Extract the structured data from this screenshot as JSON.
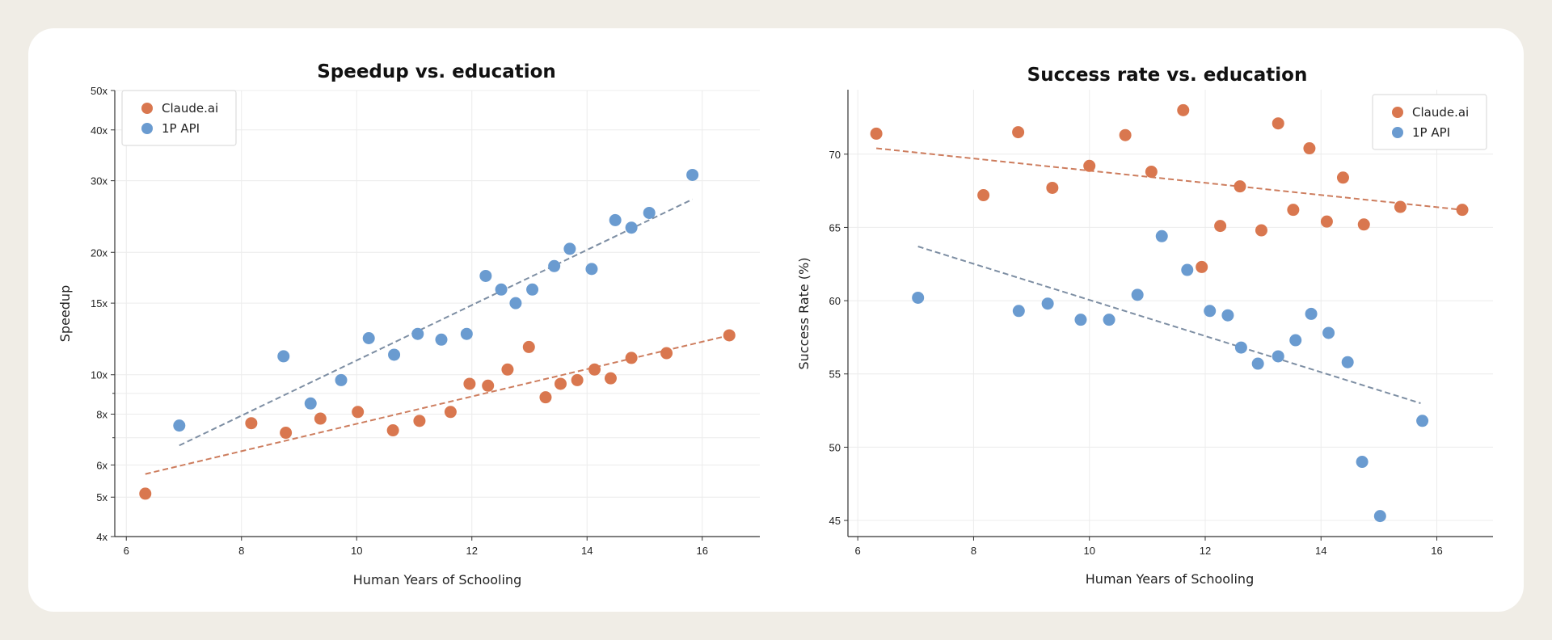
{
  "colors": {
    "background": "#f0ede6",
    "card": "#ffffff",
    "claude": "#d9774f",
    "api": "#6a9bd0",
    "claude_trend": "#cd7d5e",
    "api_trend": "#7d8ea3",
    "grid": "#ececec"
  },
  "chart_data": [
    {
      "type": "scatter",
      "title": "Speedup vs. education",
      "xlabel": "Human Years of Schooling",
      "ylabel": "Speedup",
      "xlim": [
        5.8,
        17
      ],
      "ylim": [
        4,
        50
      ],
      "yscale": "log",
      "xticks": [
        6,
        8,
        10,
        12,
        14,
        16
      ],
      "yticks": [
        4,
        5,
        6,
        8,
        10,
        15,
        20,
        30,
        40,
        50
      ],
      "ytick_labels": [
        "4x",
        "5x",
        "6x",
        "8x",
        "10x",
        "15x",
        "20x",
        "30x",
        "40x",
        "50x"
      ],
      "yminor": [
        7,
        9
      ],
      "grid": true,
      "legend": "top-left",
      "series": [
        {
          "name": "Claude.ai",
          "color": "#d9774f",
          "x": [
            6.33,
            8.17,
            8.77,
            9.37,
            10.02,
            10.63,
            11.09,
            11.63,
            11.96,
            12.28,
            12.62,
            12.99,
            13.28,
            13.54,
            13.83,
            14.13,
            14.41,
            14.77,
            15.38,
            16.47
          ],
          "y": [
            5.1,
            7.6,
            7.2,
            7.8,
            8.1,
            7.3,
            7.7,
            8.1,
            9.5,
            9.4,
            10.3,
            11.7,
            8.8,
            9.5,
            9.7,
            10.3,
            9.8,
            11.0,
            11.3,
            12.5
          ],
          "trend": {
            "x": [
              6.33,
              16.47
            ],
            "y": [
              5.7,
              12.5
            ]
          }
        },
        {
          "name": "1P API",
          "color": "#6a9bd0",
          "x": [
            6.92,
            8.73,
            9.2,
            9.73,
            10.21,
            10.65,
            11.06,
            11.47,
            11.91,
            12.24,
            12.51,
            12.76,
            13.05,
            13.43,
            13.7,
            14.08,
            14.49,
            14.77,
            15.08,
            15.83
          ],
          "y": [
            7.5,
            11.1,
            8.5,
            9.7,
            12.3,
            11.2,
            12.6,
            12.2,
            12.6,
            17.5,
            16.2,
            15.0,
            16.2,
            18.5,
            20.4,
            18.2,
            24.0,
            23.0,
            25.0,
            31.0
          ],
          "trend": {
            "x": [
              6.92,
              15.83
            ],
            "y": [
              6.7,
              27.0
            ]
          }
        }
      ]
    },
    {
      "type": "scatter",
      "title": "Success rate vs. education",
      "xlabel": "Human Years of Schooling",
      "ylabel": "Success Rate (%)",
      "xlim": [
        5.83,
        16.97
      ],
      "ylim": [
        43.9,
        74.4
      ],
      "yscale": "linear",
      "xticks": [
        6,
        8,
        10,
        12,
        14,
        16
      ],
      "yticks": [
        45,
        50,
        55,
        60,
        65,
        70
      ],
      "ytick_labels": [
        "45",
        "50",
        "55",
        "60",
        "65",
        "70"
      ],
      "yminor": [],
      "grid": true,
      "legend": "top-right",
      "series": [
        {
          "name": "Claude.ai",
          "color": "#d9774f",
          "x": [
            6.32,
            8.17,
            8.77,
            9.36,
            10.0,
            10.62,
            11.07,
            11.62,
            11.94,
            12.26,
            12.6,
            12.97,
            13.26,
            13.52,
            13.8,
            14.1,
            14.38,
            14.74,
            15.37,
            16.44
          ],
          "y": [
            71.4,
            67.2,
            71.5,
            67.7,
            69.2,
            71.3,
            68.8,
            73.0,
            62.3,
            65.1,
            67.8,
            64.8,
            72.1,
            66.2,
            70.4,
            65.4,
            68.4,
            65.2,
            66.4,
            66.2
          ],
          "trend": {
            "x": [
              6.32,
              16.44
            ],
            "y": [
              70.4,
              66.2
            ]
          }
        },
        {
          "name": "1P API",
          "color": "#6a9bd0",
          "x": [
            7.04,
            8.78,
            9.28,
            9.85,
            10.34,
            10.83,
            11.25,
            11.69,
            12.08,
            12.39,
            12.62,
            12.91,
            13.26,
            13.56,
            13.83,
            14.13,
            14.46,
            14.71,
            15.02,
            15.75
          ],
          "y": [
            60.2,
            59.3,
            59.8,
            58.7,
            58.7,
            60.4,
            64.4,
            62.1,
            59.3,
            59.0,
            56.8,
            55.7,
            56.2,
            57.3,
            59.1,
            57.8,
            55.8,
            49.0,
            45.3,
            51.8
          ],
          "trend": {
            "x": [
              7.04,
              15.72
            ],
            "y": [
              63.7,
              53.0
            ]
          }
        }
      ]
    }
  ]
}
